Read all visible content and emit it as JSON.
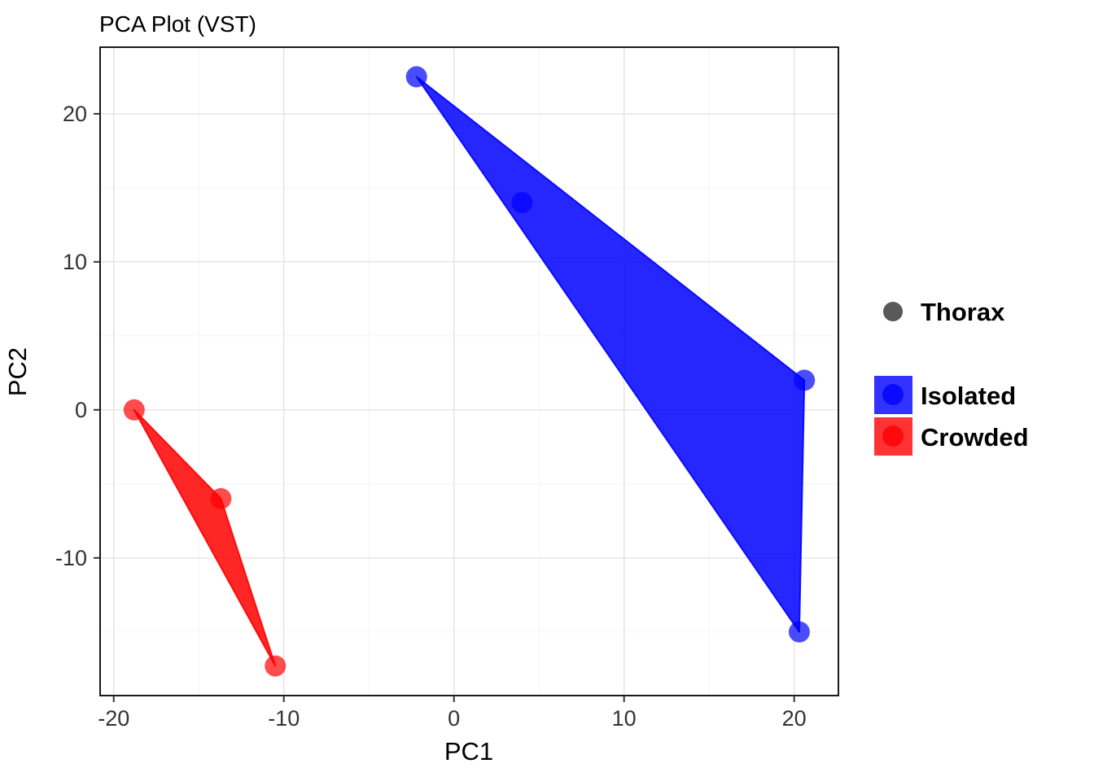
{
  "chart_data": {
    "type": "scatter",
    "title": "PCA Plot (VST)",
    "xlabel": "PC1",
    "ylabel": "PC2",
    "xlim": [
      -20.8,
      22.6
    ],
    "ylim": [
      -19.3,
      24.5
    ],
    "xticks": [
      -20,
      -10,
      0,
      10,
      20
    ],
    "yticks": [
      -10,
      0,
      10,
      20
    ],
    "grid": true,
    "legend_position": "right",
    "colors": {
      "isolated": "#0000FF",
      "crowded": "#FF0000",
      "thorax_key": "#595959",
      "gridline_major": "#E4E4E4",
      "gridline_minor": "#F2F2F2",
      "panel_border": "#000000",
      "tick_mark": "#333333",
      "tick_label": "#333333",
      "text": "#000000"
    },
    "series": [
      {
        "name": "Isolated",
        "color": "#0000FF",
        "points": [
          [
            -2.2,
            22.5
          ],
          [
            4.0,
            14.0
          ],
          [
            20.6,
            2.0
          ],
          [
            20.3,
            -15.0
          ]
        ],
        "hull": [
          [
            -2.2,
            22.5
          ],
          [
            20.6,
            2.0
          ],
          [
            20.3,
            -15.0
          ]
        ]
      },
      {
        "name": "Crowded",
        "color": "#FF0000",
        "points": [
          [
            -18.8,
            0.0
          ],
          [
            -13.7,
            -6.0
          ],
          [
            -10.5,
            -17.3
          ]
        ],
        "hull": [
          [
            -18.8,
            0.0
          ],
          [
            -13.7,
            -6.0
          ],
          [
            -10.5,
            -17.3
          ]
        ]
      }
    ],
    "legend": {
      "shape_legend": {
        "title": "Thorax",
        "marker": "circle",
        "color": "#595959"
      },
      "fill_legend": {
        "items": [
          {
            "label": "Isolated",
            "color": "#0000FF"
          },
          {
            "label": "Crowded",
            "color": "#FF0000"
          }
        ]
      }
    }
  }
}
